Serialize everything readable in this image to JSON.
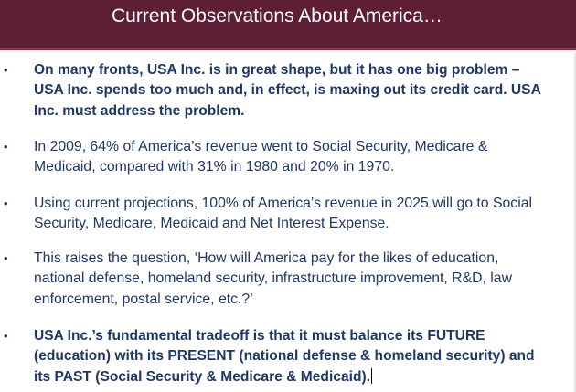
{
  "slide": {
    "title": "Current Observations About America…",
    "bullet_symbol": "•",
    "colors": {
      "title_bar": "#5e1e35",
      "title_text": "#ffffff",
      "body_text": "#1f3864"
    },
    "bullets": [
      {
        "bold": true,
        "lines": [
          "On many fronts, USA Inc. is in great shape, but it has one big problem –",
          "USA Inc. spends too much and, in effect, is maxing out its credit card. USA",
          "Inc. must address the problem."
        ]
      },
      {
        "bold": false,
        "lines": [
          "In 2009, 64% of America’s revenue went to Social Security, Medicare &",
          "Medicaid, compared with 31% in 1980 and 20% in 1970."
        ]
      },
      {
        "bold": false,
        "lines": [
          "Using current projections, 100% of America’s revenue in 2025 will go to Social",
          "Security, Medicare, Medicaid and Net Interest Expense."
        ]
      },
      {
        "bold": false,
        "lines": [
          "This raises the question, ‘How will America pay for the likes of education,",
          "national defense, homeland security, infrastructure improvement, R&D, law",
          "enforcement, postal service, etc.?’"
        ]
      },
      {
        "bold": true,
        "lines": [
          "USA Inc.’s fundamental tradeoff is that it must balance its FUTURE",
          "(education) with its PRESENT (national defense & homeland security) and",
          "its PAST (Social Security & Medicare & Medicaid)."
        ]
      }
    ]
  }
}
